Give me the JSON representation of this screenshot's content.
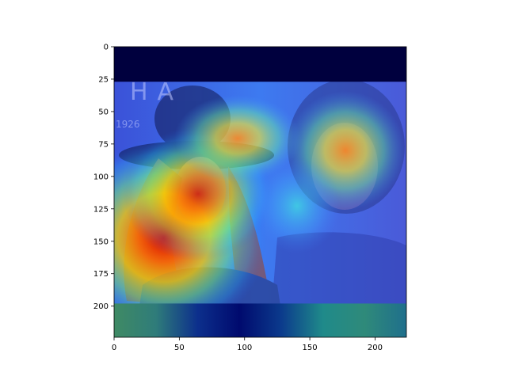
{
  "chart_data": {
    "type": "heatmap",
    "title": "",
    "xlabel": "",
    "ylabel": "",
    "xlim": [
      0,
      224
    ],
    "ylim": [
      224,
      0
    ],
    "grid": false,
    "x_ticks": [
      0,
      50,
      100,
      150,
      200
    ],
    "y_ticks": [
      0,
      25,
      50,
      75,
      100,
      125,
      150,
      175,
      200
    ],
    "colormap": "jet",
    "background_photo": {
      "visible_text": [
        "HA",
        "1926"
      ]
    },
    "heat_spots": [
      {
        "x": 40,
        "y": 145,
        "intensity": 1.0
      },
      {
        "x": 70,
        "y": 115,
        "intensity": 0.85
      },
      {
        "x": 95,
        "y": 70,
        "intensity": 0.55
      },
      {
        "x": 175,
        "y": 80,
        "intensity": 0.75
      },
      {
        "x": 140,
        "y": 120,
        "intensity": 0.45
      }
    ],
    "top_band": {
      "y_start": 0,
      "y_end": 27,
      "color": "#00003e"
    },
    "bottom_band": {
      "y_start": 198,
      "y_end": 224,
      "colors": [
        "#3f8a64",
        "#2f7c7a",
        "#0c2f8c",
        "#000a6e",
        "#0b3a8c",
        "#1f8a8a",
        "#2f8a7a",
        "#1f6f8c"
      ]
    }
  }
}
